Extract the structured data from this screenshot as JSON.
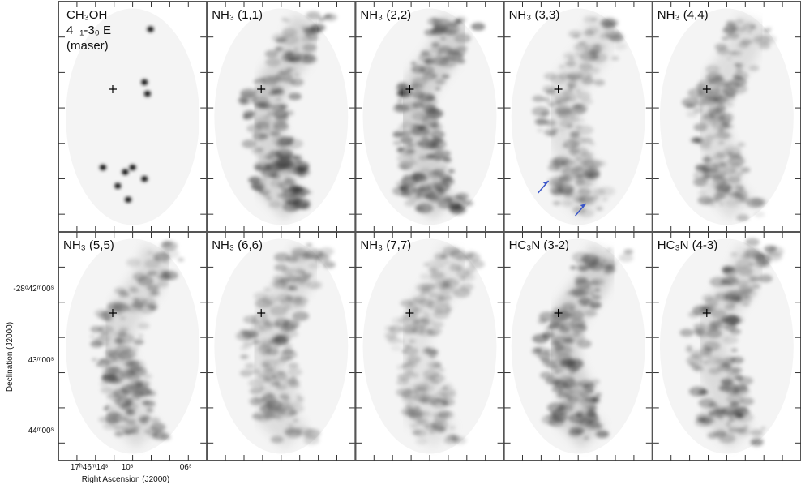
{
  "panels": [
    {
      "label_lines": [
        "CH₃OH",
        "4₋₁-3₀ E",
        "(maser)"
      ]
    },
    {
      "label_lines": [
        "NH₃ (1,1)"
      ]
    },
    {
      "label_lines": [
        "NH₃ (2,2)"
      ]
    },
    {
      "label_lines": [
        "NH₃ (3,3)"
      ]
    },
    {
      "label_lines": [
        "NH₃ (4,4)"
      ]
    },
    {
      "label_lines": [
        "NH₃ (5,5)"
      ]
    },
    {
      "label_lines": [
        "NH₃ (6,6)"
      ]
    },
    {
      "label_lines": [
        "NH₃ (7,7)"
      ]
    },
    {
      "label_lines": [
        "HC₃N (3-2)"
      ]
    },
    {
      "label_lines": [
        "HC₃N (4-3)"
      ]
    }
  ],
  "y_axis": {
    "label": "Declination (J2000)",
    "ticks": [
      "-28ᵒ42ᵐ00ˢ",
      "43ᵐ00ˢ",
      "44ᵐ00ˢ"
    ]
  },
  "x_axis": {
    "label": "Right Ascension (J2000)",
    "ticks": [
      "17ʰ46ᵐ14ˢ",
      "10ˢ",
      "06ˢ"
    ]
  }
}
